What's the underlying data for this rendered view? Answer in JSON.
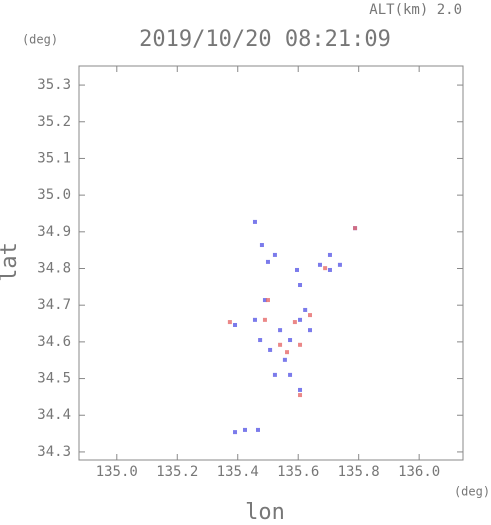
{
  "chart_data": {
    "type": "scatter",
    "title": "2019/10/20 08:21:09",
    "subtitle": "ALT(km) 2.0",
    "x_label": "lon",
    "y_label": "lat",
    "x_unit": "(deg)",
    "y_unit": "(deg)",
    "xlim": [
      134.875,
      136.145
    ],
    "ylim": [
      34.278,
      35.352
    ],
    "xticks": [
      {
        "value": 135,
        "label": "135.0"
      },
      135.2,
      135.4,
      135.6,
      135.8,
      {
        "value": 136,
        "label": "136.0"
      }
    ],
    "yticks": [
      34.3,
      34.4,
      34.5,
      34.6,
      34.7,
      34.8,
      34.9,
      {
        "value": 35,
        "label": "35.0"
      },
      35.1,
      35.2,
      35.3
    ],
    "series": [
      {
        "color": "#5a5ae6",
        "x": [
          135.457,
          135.48,
          135.5,
          135.523,
          135.596,
          135.672,
          135.705,
          135.606,
          135.49,
          135.457,
          135.391,
          135.54,
          135.606,
          135.573,
          135.507,
          135.639,
          135.556,
          135.523,
          135.573,
          135.606,
          135.391,
          135.424,
          135.467,
          135.738,
          135.705,
          135.788,
          135.474,
          135.623
        ],
        "values": [
          34.927,
          34.864,
          34.818,
          34.837,
          34.796,
          34.81,
          34.796,
          34.755,
          34.714,
          34.66,
          34.646,
          34.632,
          34.66,
          34.605,
          34.578,
          34.632,
          34.551,
          34.51,
          34.51,
          34.469,
          34.354,
          34.36,
          34.36,
          34.81,
          34.837,
          34.91,
          34.605,
          34.687
        ]
      },
      {
        "color": "#e66a6a",
        "x": [
          135.5,
          135.589,
          135.606,
          135.54,
          135.606,
          135.689,
          135.788,
          135.374,
          135.49,
          135.639,
          135.563
        ],
        "values": [
          34.714,
          34.654,
          34.592,
          34.592,
          34.455,
          34.801,
          34.91,
          34.654,
          34.66,
          34.673,
          34.572
        ]
      }
    ]
  }
}
